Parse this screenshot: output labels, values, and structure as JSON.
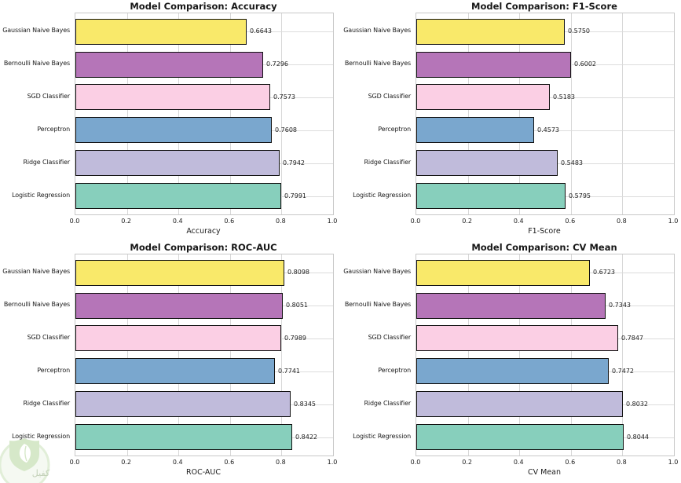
{
  "page": {
    "background": "#ffffff"
  },
  "palette": {
    "bar_colors": [
      "#F9E96A",
      "#B575B8",
      "#FBCFE4",
      "#7AA7CE",
      "#C0BBDB",
      "#87CFBC"
    ],
    "bar_edge": "#111111",
    "grid_color": "#d9d9d9",
    "spine_color": "#c8c8c8",
    "text_color": "#1c1c1c"
  },
  "models": [
    "Gaussian Naive Bayes",
    "Bernoulli Naive Bayes",
    "SGD Classifier",
    "Perceptron",
    "Ridge Classifier",
    "Logistic Regression"
  ],
  "chart_data": [
    {
      "type": "bar",
      "orientation": "horizontal",
      "title": "Model Comparison: Accuracy",
      "xlabel": "Accuracy",
      "categories": [
        "Gaussian Naive Bayes",
        "Bernoulli Naive Bayes",
        "SGD Classifier",
        "Perceptron",
        "Ridge Classifier",
        "Logistic Regression"
      ],
      "values": [
        0.6643,
        0.7296,
        0.7573,
        0.7608,
        0.7942,
        0.7991
      ],
      "labels": [
        "0.6643",
        "0.7296",
        "0.7573",
        "0.7608",
        "0.7942",
        "0.7991"
      ],
      "xlim": [
        0.0,
        1.0
      ],
      "xticks": [
        "0.0",
        "0.2",
        "0.4",
        "0.6",
        "0.8",
        "1.0"
      ],
      "grid": true,
      "legend": false
    },
    {
      "type": "bar",
      "orientation": "horizontal",
      "title": "Model Comparison: F1-Score",
      "xlabel": "F1-Score",
      "categories": [
        "Gaussian Naive Bayes",
        "Bernoulli Naive Bayes",
        "SGD Classifier",
        "Perceptron",
        "Ridge Classifier",
        "Logistic Regression"
      ],
      "values": [
        0.575,
        0.6002,
        0.5183,
        0.4573,
        0.5483,
        0.5795
      ],
      "labels": [
        "0.5750",
        "0.6002",
        "0.5183",
        "0.4573",
        "0.5483",
        "0.5795"
      ],
      "xlim": [
        0.0,
        1.0
      ],
      "xticks": [
        "0.0",
        "0.2",
        "0.4",
        "0.6",
        "0.8",
        "1.0"
      ],
      "grid": true,
      "legend": false
    },
    {
      "type": "bar",
      "orientation": "horizontal",
      "title": "Model Comparison: ROC-AUC",
      "xlabel": "ROC-AUC",
      "categories": [
        "Gaussian Naive Bayes",
        "Bernoulli Naive Bayes",
        "SGD Classifier",
        "Perceptron",
        "Ridge Classifier",
        "Logistic Regression"
      ],
      "values": [
        0.8098,
        0.8051,
        0.7989,
        0.7741,
        0.8345,
        0.8422
      ],
      "labels": [
        "0.8098",
        "0.8051",
        "0.7989",
        "0.7741",
        "0.8345",
        "0.8422"
      ],
      "xlim": [
        0.0,
        1.0
      ],
      "xticks": [
        "0.0",
        "0.2",
        "0.4",
        "0.6",
        "0.8",
        "1.0"
      ],
      "grid": true,
      "legend": false
    },
    {
      "type": "bar",
      "orientation": "horizontal",
      "title": "Model Comparison: CV Mean",
      "xlabel": "CV Mean",
      "categories": [
        "Gaussian Naive Bayes",
        "Bernoulli Naive Bayes",
        "SGD Classifier",
        "Perceptron",
        "Ridge Classifier",
        "Logistic Regression"
      ],
      "values": [
        0.6723,
        0.7343,
        0.7847,
        0.7472,
        0.8032,
        0.8044
      ],
      "labels": [
        "0.6723",
        "0.7343",
        "0.7847",
        "0.7472",
        "0.8032",
        "0.8044"
      ],
      "xlim": [
        0.0,
        1.0
      ],
      "xticks": [
        "0.0",
        "0.2",
        "0.4",
        "0.6",
        "0.8",
        "1.0"
      ],
      "grid": true,
      "legend": false
    }
  ],
  "watermark": {
    "text": "كفيل"
  }
}
